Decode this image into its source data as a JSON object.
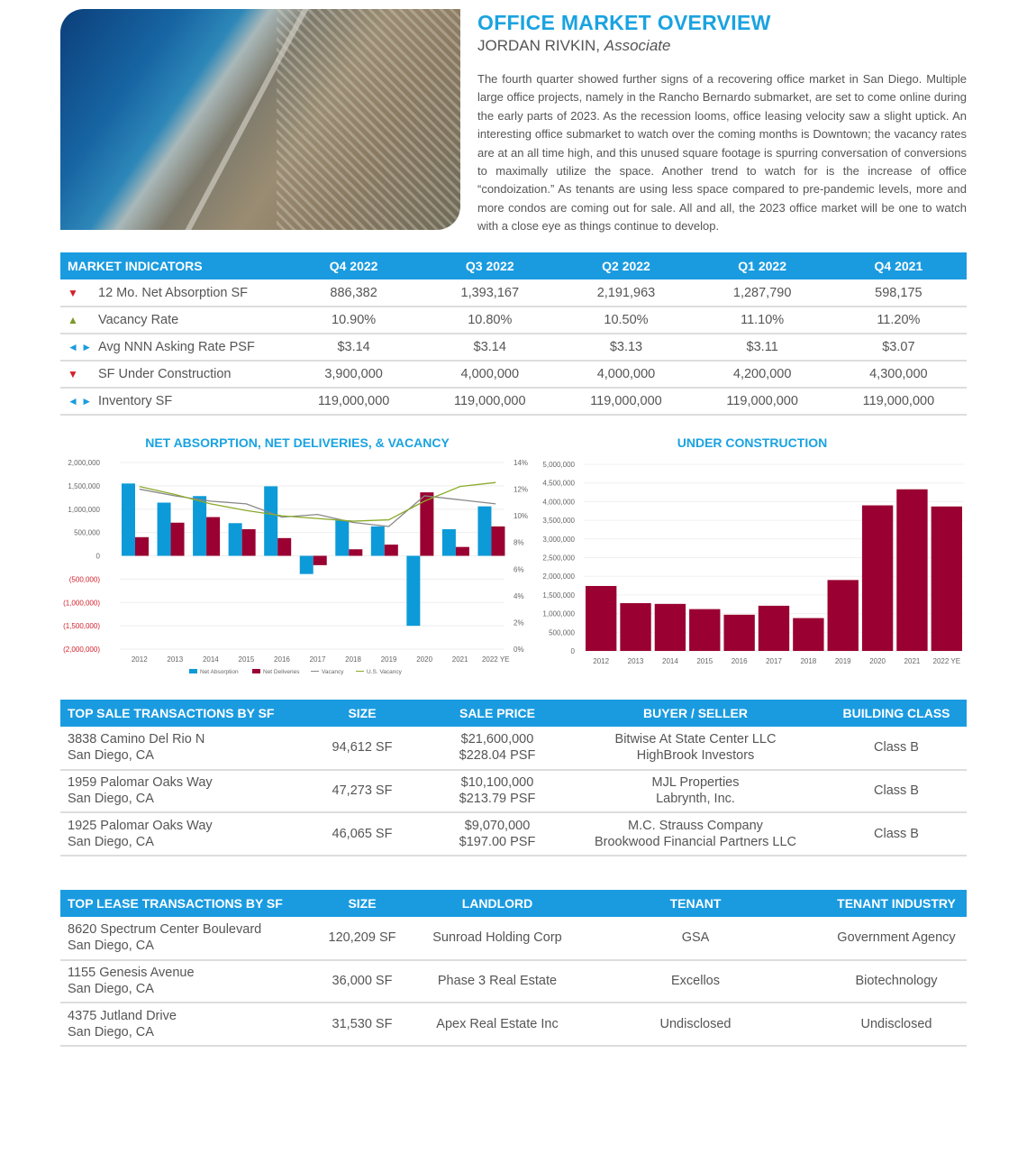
{
  "header": {
    "title": "OFFICE MARKET OVERVIEW",
    "author_name": "JORDAN RIVKIN,",
    "author_role": "Associate",
    "intro": "The fourth quarter showed further signs of a recovering office market in San Diego. Multiple large office projects, namely in the Rancho Bernardo submarket, are set to come online during the early parts of 2023. As the recession looms, office leasing velocity saw a slight uptick. An interesting office submarket to watch over the coming months is Downtown; the vacancy rates are at an all time high, and this unused square footage is spurring conversation of conversions to maximally utilize the space. Another trend to watch for is the increase of office “condoization.” As tenants are using less space compared to pre-pandemic levels, more and more condos are coming out for sale. All and all, the 2023 office market will be one to watch with a close eye as things continue to develop."
  },
  "indicators": {
    "headers": [
      "MARKET INDICATORS",
      "Q4 2022",
      "Q3 2022",
      "Q2 2022",
      "Q1 2022",
      "Q4 2021"
    ],
    "rows": [
      {
        "icon": "▼",
        "trend": "down",
        "label": "12 Mo. Net Absorption SF",
        "values": [
          "886,382",
          "1,393,167",
          "2,191,963",
          "1,287,790",
          "598,175"
        ]
      },
      {
        "icon": "▲",
        "trend": "up",
        "label": "Vacancy Rate",
        "values": [
          "10.90%",
          "10.80%",
          "10.50%",
          "11.10%",
          "11.20%"
        ]
      },
      {
        "icon": "◄ ►",
        "trend": "lr",
        "label": "Avg NNN Asking Rate PSF",
        "values": [
          "$3.14",
          "$3.14",
          "$3.13",
          "$3.11",
          "$3.07"
        ]
      },
      {
        "icon": "▼",
        "trend": "down",
        "label": "SF Under Construction",
        "values": [
          "3,900,000",
          "4,000,000",
          "4,000,000",
          "4,200,000",
          "4,300,000"
        ]
      },
      {
        "icon": "◄ ►",
        "trend": "lr",
        "label": "Inventory SF",
        "values": [
          "119,000,000",
          "119,000,000",
          "119,000,000",
          "119,000,000",
          "119,000,000"
        ]
      }
    ]
  },
  "chart_data": [
    {
      "type": "bar",
      "title": "NET ABSORPTION, NET DELIVERIES, & VACANCY",
      "categories": [
        "2012",
        "2013",
        "2014",
        "2015",
        "2016",
        "2017",
        "2018",
        "2019",
        "2020",
        "2021",
        "2022 YE"
      ],
      "ylim": [
        -2000000,
        2000000
      ],
      "y2lim": [
        0,
        14
      ],
      "yticks": [
        "2,000,000",
        "1,500,000",
        "1,000,000",
        "500,000",
        "0",
        "(500,000)",
        "(1,000,000)",
        "(1,500,000)",
        "(2,000,000)"
      ],
      "y2ticks": [
        "14%",
        "12%",
        "10%",
        "8%",
        "6%",
        "4%",
        "2%",
        "0%"
      ],
      "series": [
        {
          "name": "Net Absorption",
          "kind": "bar",
          "color": "#0d9ad8",
          "values": [
            1550000,
            1140000,
            1280000,
            700000,
            1490000,
            -390000,
            760000,
            630000,
            -1500000,
            570000,
            1060000
          ]
        },
        {
          "name": "Net Deliveries",
          "kind": "bar",
          "color": "#9a0031",
          "values": [
            400000,
            710000,
            830000,
            570000,
            380000,
            -200000,
            140000,
            240000,
            1360000,
            190000,
            630000
          ]
        },
        {
          "name": "Vacancy",
          "kind": "line",
          "axis": "right",
          "color": "#888888",
          "values": [
            12.0,
            11.5,
            11.1,
            10.9,
            9.9,
            10.1,
            9.5,
            9.2,
            11.5,
            11.2,
            10.9
          ]
        },
        {
          "name": "U.S. Vacancy",
          "kind": "line",
          "axis": "right",
          "color": "#8aaa2a",
          "values": [
            12.2,
            11.6,
            10.9,
            10.4,
            10.0,
            9.8,
            9.6,
            9.7,
            11.1,
            12.2,
            12.5
          ]
        }
      ],
      "legend": "bottom"
    },
    {
      "type": "bar",
      "title": "UNDER CONSTRUCTION",
      "categories": [
        "2012",
        "2013",
        "2014",
        "2015",
        "2016",
        "2017",
        "2018",
        "2019",
        "2020",
        "2021",
        "2022 YE"
      ],
      "ylim": [
        0,
        5000000
      ],
      "yticks": [
        "5,000,000",
        "4,500,000",
        "4,000,000",
        "3,500,000",
        "3,000,000",
        "2,500,000",
        "2,000,000",
        "1,500,000",
        "1,000,000",
        "500,000",
        "0"
      ],
      "series": [
        {
          "name": "Under Construction",
          "color": "#9a0031",
          "values": [
            1740000,
            1280000,
            1260000,
            1120000,
            970000,
            1210000,
            880000,
            1900000,
            3900000,
            4330000,
            3870000
          ]
        }
      ]
    }
  ],
  "sales": {
    "headers": [
      "TOP SALE TRANSACTIONS BY SF",
      "SIZE",
      "SALE PRICE",
      "BUYER / SELLER",
      "BUILDING CLASS"
    ],
    "rows": [
      {
        "addr": "3838 Camino Del Rio N",
        "city": "San Diego, CA",
        "size": "94,612 SF",
        "price": "$21,600,000",
        "psf": "$228.04 PSF",
        "buyer": "Bitwise At State Center LLC",
        "seller": "HighBrook Investors",
        "class": "Class B"
      },
      {
        "addr": "1959 Palomar Oaks Way",
        "city": "San Diego, CA",
        "size": "47,273 SF",
        "price": "$10,100,000",
        "psf": "$213.79 PSF",
        "buyer": "MJL Properties",
        "seller": "Labrynth, Inc.",
        "class": "Class B"
      },
      {
        "addr": "1925 Palomar Oaks Way",
        "city": "San Diego, CA",
        "size": "46,065 SF",
        "price": "$9,070,000",
        "psf": "$197.00 PSF",
        "buyer": "M.C. Strauss Company",
        "seller": "Brookwood Financial Partners LLC",
        "class": "Class B"
      }
    ]
  },
  "leases": {
    "headers": [
      "TOP LEASE TRANSACTIONS BY SF",
      "SIZE",
      "LANDLORD",
      "TENANT",
      "TENANT INDUSTRY"
    ],
    "rows": [
      {
        "addr": "8620 Spectrum Center Boulevard",
        "city": "San Diego, CA",
        "size": "120,209 SF",
        "landlord": "Sunroad Holding Corp",
        "tenant": "GSA",
        "industry": "Government Agency"
      },
      {
        "addr": "1155 Genesis Avenue",
        "city": "San Diego, CA",
        "size": "36,000 SF",
        "landlord": "Phase 3 Real Estate",
        "tenant": "Excellos",
        "industry": "Biotechnology"
      },
      {
        "addr": "4375 Jutland Drive",
        "city": "San Diego, CA",
        "size": "31,530 SF",
        "landlord": "Apex Real Estate Inc",
        "tenant": "Undisclosed",
        "industry": "Undisclosed"
      }
    ]
  }
}
